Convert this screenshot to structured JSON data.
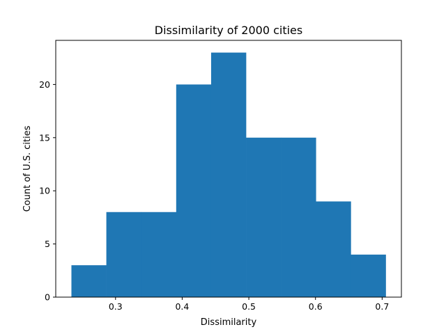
{
  "chart_data": {
    "type": "bar",
    "subtype": "histogram",
    "title": "Dissimilarity of 2000 cities",
    "xlabel": "Dissimilarity",
    "ylabel": "Count of U.S. cities",
    "bin_edges": [
      0.2338,
      0.2862,
      0.3386,
      0.391,
      0.4434,
      0.4958,
      0.5482,
      0.6006,
      0.653,
      0.7054
    ],
    "values": [
      3,
      8,
      8,
      20,
      23,
      15,
      15,
      9,
      4
    ],
    "xlim": [
      0.2103,
      0.7289
    ],
    "ylim": [
      0,
      24.15
    ],
    "xticks": [
      0.3,
      0.4,
      0.5,
      0.6,
      0.7
    ],
    "xtick_labels": [
      "0.3",
      "0.4",
      "0.5",
      "0.6",
      "0.7"
    ],
    "yticks": [
      0,
      5,
      10,
      15,
      20
    ],
    "ytick_labels": [
      "0",
      "5",
      "10",
      "15",
      "20"
    ],
    "grid": false,
    "legend": "none",
    "bar_color": "#1f77b4"
  }
}
